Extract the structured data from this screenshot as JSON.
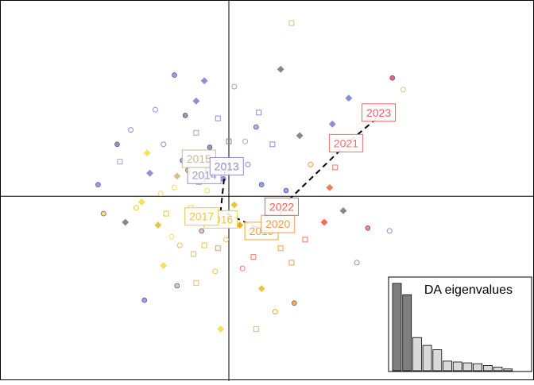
{
  "chart_data": {
    "type": "scatter",
    "title": "",
    "xlabel": "",
    "ylabel": "",
    "xlim": [
      -4.2,
      5.6
    ],
    "ylim": [
      -3.2,
      3.4
    ],
    "grid": false,
    "origin_axes": true,
    "year_colors": {
      "2014": "#8a8fd6",
      "2015": "#a7a3c8",
      "2016": "#f2e15a",
      "2017": "#d8c28a",
      "2018": "#e8c542",
      "2019": "#f5a623",
      "2020": "#f29a55",
      "2021": "#f07a5a",
      "2022": "#f26a50",
      "2023": "#f04e4e"
    },
    "trajectory": {
      "years": [
        "2014",
        "2015",
        "2013",
        "2016",
        "2019",
        "2020",
        "2022",
        "2021",
        "2023"
      ],
      "centroids": [
        [
          -0.45,
          0.26
        ],
        [
          -0.4,
          0.66
        ],
        [
          -0.06,
          0.55
        ],
        [
          -0.15,
          -0.25
        ],
        [
          0.64,
          -0.6
        ],
        [
          0.93,
          -0.48
        ],
        [
          0.97,
          -0.18
        ],
        [
          2.2,
          0.94
        ],
        [
          2.84,
          1.45
        ]
      ]
    },
    "year_labels": [
      {
        "text": "2014",
        "x": -0.45,
        "y": 0.37,
        "color": "#9a95c2"
      },
      {
        "text": "2015",
        "x": -0.55,
        "y": 0.65,
        "color": "#c4b896"
      },
      {
        "text": "2013",
        "x": -0.04,
        "y": 0.52,
        "color": "#8a8fd6"
      },
      {
        "text": "2016",
        "x": -0.15,
        "y": -0.4,
        "color": "#e6c84a"
      },
      {
        "text": "2017",
        "x": -0.5,
        "y": -0.35,
        "color": "#e6c84a"
      },
      {
        "text": "2019",
        "x": 0.6,
        "y": -0.6,
        "color": "#f5a623"
      },
      {
        "text": "2020",
        "x": 0.9,
        "y": -0.48,
        "color": "#f29a55"
      },
      {
        "text": "2022",
        "x": 0.97,
        "y": -0.18,
        "color": "#f06060"
      },
      {
        "text": "2021",
        "x": 2.15,
        "y": 0.92,
        "color": "#f07070"
      },
      {
        "text": "2023",
        "x": 2.75,
        "y": 1.45,
        "color": "#f06060"
      }
    ],
    "points": [
      {
        "x": -0.85,
        "y": 0.62,
        "year": "2014"
      },
      {
        "x": -1.2,
        "y": 0.9,
        "year": "2014"
      },
      {
        "x": -0.6,
        "y": 1.1,
        "year": "2015"
      },
      {
        "x": -1.45,
        "y": 0.4,
        "year": "2014"
      },
      {
        "x": -0.35,
        "y": 0.85,
        "year": "2013"
      },
      {
        "x": -1.0,
        "y": 0.15,
        "year": "2016"
      },
      {
        "x": -0.7,
        "y": -0.2,
        "year": "2016"
      },
      {
        "x": -1.3,
        "y": -0.5,
        "year": "2018"
      },
      {
        "x": -0.5,
        "y": -0.6,
        "year": "2017"
      },
      {
        "x": -0.9,
        "y": -0.85,
        "year": "2018"
      },
      {
        "x": -0.2,
        "y": -0.9,
        "year": "2019"
      },
      {
        "x": -1.6,
        "y": -0.1,
        "year": "2016"
      },
      {
        "x": -0.1,
        "y": 0.3,
        "year": "2014"
      },
      {
        "x": 0.35,
        "y": 0.55,
        "year": "2014"
      },
      {
        "x": 0.8,
        "y": 0.9,
        "year": "2014"
      },
      {
        "x": 1.3,
        "y": 1.05,
        "year": "2013"
      },
      {
        "x": 0.5,
        "y": 1.2,
        "year": "2015"
      },
      {
        "x": -1.8,
        "y": 1.15,
        "year": "2014"
      },
      {
        "x": -2.0,
        "y": 0.6,
        "year": "2015"
      },
      {
        "x": -1.9,
        "y": -0.45,
        "year": "2013"
      },
      {
        "x": -2.3,
        "y": -0.3,
        "year": "2016"
      },
      {
        "x": -0.25,
        "y": -1.3,
        "year": "2018"
      },
      {
        "x": -0.6,
        "y": -1.5,
        "year": "2018"
      },
      {
        "x": -1.2,
        "y": -1.2,
        "year": "2016"
      },
      {
        "x": -1.55,
        "y": -1.8,
        "year": "2014"
      },
      {
        "x": 0.25,
        "y": -1.25,
        "year": "2021"
      },
      {
        "x": 1.4,
        "y": -0.75,
        "year": "2021"
      },
      {
        "x": 1.75,
        "y": -0.45,
        "year": "2022"
      },
      {
        "x": 1.2,
        "y": -1.85,
        "year": "2019"
      },
      {
        "x": 0.85,
        "y": -2.0,
        "year": "2019"
      },
      {
        "x": 0.5,
        "y": -2.3,
        "year": "2018"
      },
      {
        "x": -0.15,
        "y": -2.3,
        "year": "2016"
      },
      {
        "x": 0.6,
        "y": 0.2,
        "year": "2014"
      },
      {
        "x": 1.5,
        "y": 0.55,
        "year": "2020"
      },
      {
        "x": 1.95,
        "y": 0.5,
        "year": "2021"
      },
      {
        "x": 2.1,
        "y": -0.25,
        "year": "2013"
      },
      {
        "x": 2.55,
        "y": -0.55,
        "year": "2021"
      },
      {
        "x": 2.35,
        "y": -1.15,
        "year": "2014"
      },
      {
        "x": 1.15,
        "y": -1.15,
        "year": "2020"
      },
      {
        "x": 1.9,
        "y": 1.25,
        "year": "2014"
      },
      {
        "x": 3.0,
        "y": 2.05,
        "year": "2023"
      },
      {
        "x": 3.2,
        "y": 1.85,
        "year": "2017"
      },
      {
        "x": 0.45,
        "y": -1.05,
        "year": "2021"
      },
      {
        "x": -0.45,
        "y": 2.0,
        "year": "2014"
      },
      {
        "x": -1.0,
        "y": 2.1,
        "year": "2014"
      },
      {
        "x": 0.1,
        "y": 1.9,
        "year": "2015"
      },
      {
        "x": 1.15,
        "y": 3.0,
        "year": "2017"
      },
      {
        "x": 0.95,
        "y": 2.2,
        "year": "2013"
      },
      {
        "x": -0.75,
        "y": 0.45,
        "year": "2018"
      },
      {
        "x": -0.4,
        "y": 0.1,
        "year": "2016"
      },
      {
        "x": -1.15,
        "y": -0.3,
        "year": "2018"
      },
      {
        "x": -0.95,
        "y": 0.35,
        "year": "2017"
      },
      {
        "x": -0.3,
        "y": -0.35,
        "year": "2019"
      },
      {
        "x": -1.05,
        "y": -0.7,
        "year": "2016"
      },
      {
        "x": -0.55,
        "y": 0.25,
        "year": "2013"
      },
      {
        "x": 0.1,
        "y": -0.15,
        "year": "2018"
      },
      {
        "x": -0.8,
        "y": 1.4,
        "year": "2013"
      },
      {
        "x": -1.35,
        "y": 1.5,
        "year": "2014"
      },
      {
        "x": 0.55,
        "y": 1.45,
        "year": "2014"
      },
      {
        "x": 2.2,
        "y": 1.7,
        "year": "2014"
      },
      {
        "x": -2.4,
        "y": 0.2,
        "year": "2014"
      },
      {
        "x": -1.7,
        "y": -0.2,
        "year": "2018"
      },
      {
        "x": -0.65,
        "y": -1.0,
        "year": "2017"
      },
      {
        "x": 0.2,
        "y": -0.5,
        "year": "2019"
      },
      {
        "x": 0.7,
        "y": -0.35,
        "year": "2020"
      },
      {
        "x": 0.3,
        "y": 0.95,
        "year": "2015"
      },
      {
        "x": -0.2,
        "y": 1.35,
        "year": "2014"
      },
      {
        "x": -1.5,
        "y": 0.75,
        "year": "2016"
      },
      {
        "x": -2.05,
        "y": 0.9,
        "year": "2013"
      },
      {
        "x": -0.05,
        "y": -0.75,
        "year": "2018"
      },
      {
        "x": 0.95,
        "y": -0.9,
        "year": "2019"
      },
      {
        "x": 1.85,
        "y": 0.15,
        "year": "2021"
      },
      {
        "x": 1.05,
        "y": 0.1,
        "year": "2014"
      },
      {
        "x": -1.25,
        "y": 0.05,
        "year": "2016"
      },
      {
        "x": -0.45,
        "y": -0.85,
        "year": "2018"
      },
      {
        "x": 0.6,
        "y": -1.6,
        "year": "2018"
      },
      {
        "x": -0.95,
        "y": -1.55,
        "year": "2017"
      },
      {
        "x": 2.95,
        "y": -0.6,
        "year": "2014"
      },
      {
        "x": 0.0,
        "y": 0.95,
        "year": "2013"
      },
      {
        "x": -0.6,
        "y": 1.65,
        "year": "2014"
      }
    ]
  },
  "inset": {
    "title": "DA eigenvalues",
    "values": [
      1.0,
      0.87,
      0.38,
      0.29,
      0.24,
      0.11,
      0.1,
      0.09,
      0.08,
      0.06,
      0.04,
      0.02
    ],
    "highlighted_count": 2,
    "colors": {
      "highlight": "#7f7f7f",
      "other": "#d9d9d9",
      "border": "#000000"
    }
  }
}
